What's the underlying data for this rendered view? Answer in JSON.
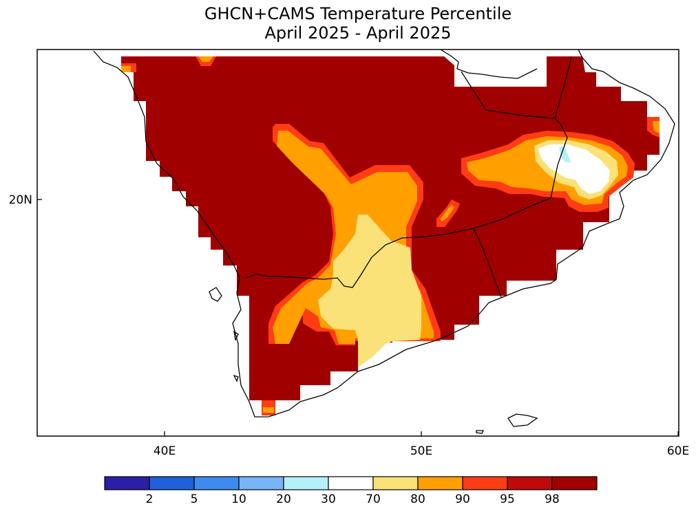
{
  "title": {
    "line1": "GHCN+CAMS Temperature Percentile",
    "line2": "April 2025 - April 2025"
  },
  "axes": {
    "x_ticks": [
      {
        "label": "40E",
        "lon": 40
      },
      {
        "label": "50E",
        "lon": 50
      },
      {
        "label": "60E",
        "lon": 60
      }
    ],
    "y_ticks": [
      {
        "label": "20N",
        "lat": 20
      }
    ]
  },
  "colorbar": {
    "colors": [
      "#2d1ea6",
      "#2060dc",
      "#3c8cf0",
      "#78b4f8",
      "#b4f0fa",
      "#ffffff",
      "#fae178",
      "#ffa000",
      "#ff3c14",
      "#be0a0a",
      "#a00000"
    ],
    "labels": [
      "2",
      "5",
      "10",
      "20",
      "30",
      "70",
      "80",
      "90",
      "95",
      "98"
    ]
  },
  "palette": {
    "above_98": "#a00000",
    "p95_98": "#be0a0a",
    "p90_95": "#ff3c14",
    "p80_90": "#ffa000",
    "p70_80": "#fae178",
    "p30_70": "#ffffff",
    "p20_30": "#b4f0fa",
    "coast": "#000000"
  }
}
